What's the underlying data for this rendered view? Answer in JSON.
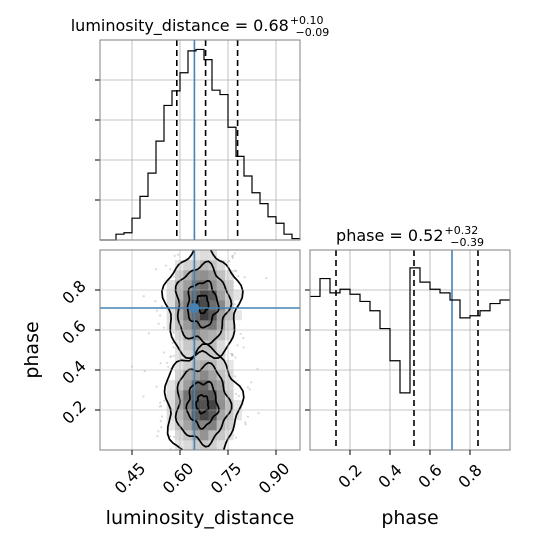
{
  "chart_data": [
    {
      "type": "histogram",
      "panel": "luminosity_distance marginal",
      "title": {
        "text": "luminosity_distance = 0.68",
        "sup": "+0.10",
        "sub": "−0.09"
      },
      "bin_edges": [
        0.35,
        0.375,
        0.4,
        0.425,
        0.45,
        0.475,
        0.5,
        0.525,
        0.55,
        0.575,
        0.6,
        0.625,
        0.65,
        0.675,
        0.7,
        0.725,
        0.75,
        0.775,
        0.8,
        0.825,
        0.85,
        0.875,
        0.9,
        0.925,
        0.95,
        0.975
      ],
      "values": [
        0,
        0,
        8,
        10,
        30,
        60,
        92,
        136,
        185,
        205,
        230,
        260,
        262,
        248,
        206,
        200,
        155,
        115,
        88,
        65,
        50,
        32,
        23,
        8,
        2
      ],
      "ylim": [
        0,
        275
      ],
      "xlim": [
        0.35,
        0.975
      ],
      "quantiles": [
        0.59,
        0.68,
        0.78
      ],
      "truth": 0.645
    },
    {
      "type": "histogram2d",
      "panel": "luminosity_distance vs phase",
      "x_range": [
        0.35,
        0.975
      ],
      "y_range": [
        0.0,
        1.0
      ],
      "xticks": [
        "0.45",
        "0.60",
        "0.75",
        "0.90"
      ],
      "xtick_values": [
        0.45,
        0.6,
        0.75,
        0.9
      ],
      "yticks": [
        "0.2",
        "0.4",
        "0.6",
        "0.8"
      ],
      "ytick_values": [
        0.2,
        0.4,
        0.6,
        0.8
      ],
      "xlabel": "luminosity_distance",
      "ylabel": "phase",
      "truth": {
        "x": 0.645,
        "y": 0.71
      },
      "density_clusters": [
        {
          "x": 0.67,
          "y": 0.73,
          "sx": 0.055,
          "sy": 0.13,
          "w": 1.0
        },
        {
          "x": 0.67,
          "y": 0.23,
          "sx": 0.055,
          "sy": 0.13,
          "w": 1.0
        }
      ]
    },
    {
      "type": "histogram",
      "panel": "phase marginal",
      "title": {
        "text": "phase = 0.52",
        "sup": "+0.32",
        "sub": "−0.39"
      },
      "bin_edges": [
        0.0,
        0.05,
        0.1,
        0.15,
        0.2,
        0.25,
        0.3,
        0.35,
        0.4,
        0.45,
        0.5,
        0.55,
        0.6,
        0.65,
        0.7,
        0.75,
        0.8,
        0.85,
        0.9,
        0.95,
        1.0
      ],
      "values": [
        215,
        240,
        220,
        225,
        218,
        208,
        195,
        170,
        125,
        80,
        255,
        235,
        225,
        220,
        210,
        185,
        188,
        195,
        205,
        210
      ],
      "ylim": [
        0,
        280
      ],
      "xlim": [
        0.0,
        1.0
      ],
      "xticks": [
        "0.2",
        "0.4",
        "0.6",
        "0.8"
      ],
      "xtick_values": [
        0.2,
        0.4,
        0.6,
        0.8
      ],
      "xlabel": "phase",
      "quantiles": [
        0.13,
        0.52,
        0.84
      ],
      "truth": 0.71
    }
  ],
  "colors": {
    "truth": "#4682b4",
    "hist": "#000000",
    "grid": "#b0b0b0",
    "frame": "#808080"
  }
}
